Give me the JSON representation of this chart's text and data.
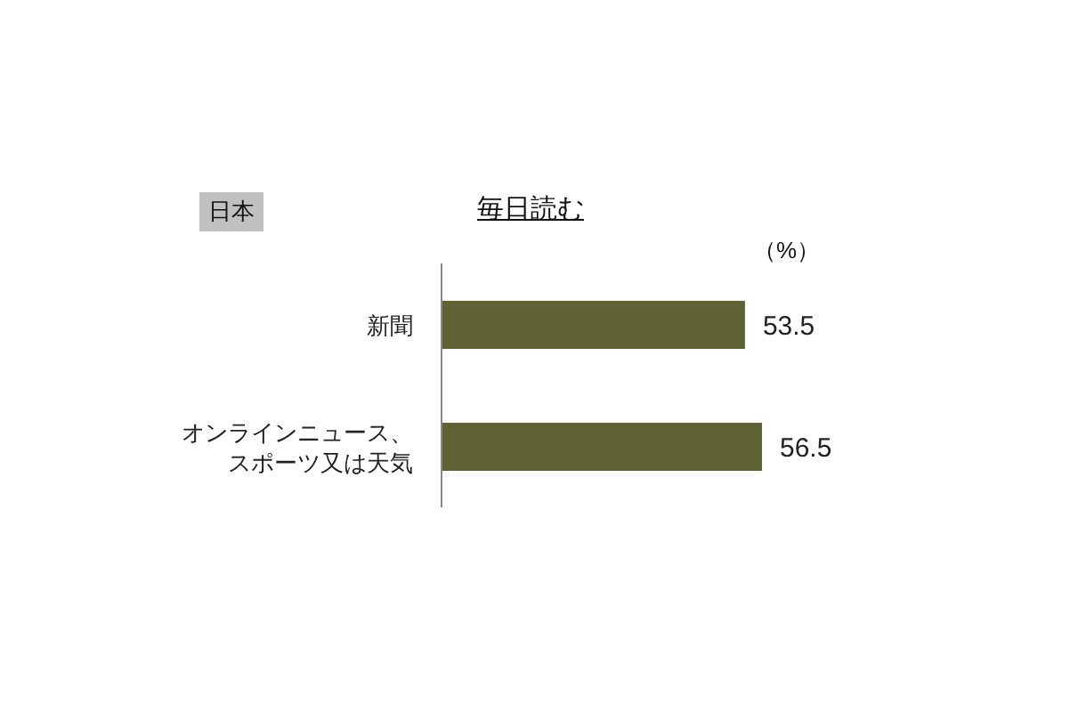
{
  "chart_data": {
    "type": "bar",
    "orientation": "horizontal",
    "title": "毎日読む",
    "xlabel": "（%）",
    "annotations": [
      "日本"
    ],
    "categories": [
      "新聞",
      "オンラインニュース、スポーツ又は天気"
    ],
    "values": [
      53.5,
      56.5
    ],
    "color": "#5f6232",
    "tick_labels": "y",
    "data_labels": true
  }
}
